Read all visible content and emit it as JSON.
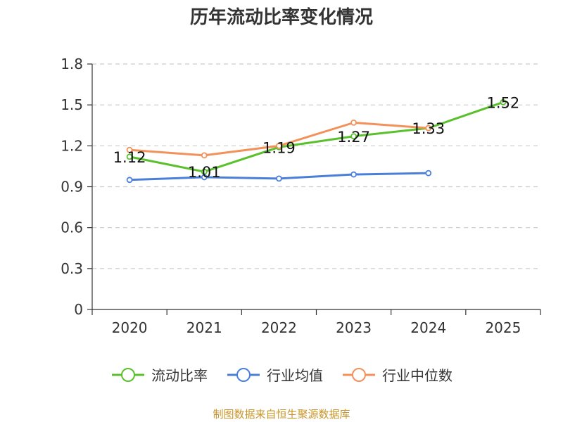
{
  "chart_data": {
    "type": "line",
    "title": "历年流动比率变化情况",
    "xlabel": "",
    "ylabel": "",
    "categories": [
      "2020",
      "2021",
      "2022",
      "2023",
      "2024",
      "2025"
    ],
    "ylim": [
      0,
      1.8
    ],
    "yticks": [
      0,
      0.3,
      0.6,
      0.9,
      1.2,
      1.5,
      1.8
    ],
    "ytick_labels": [
      "0",
      "0.3",
      "0.6",
      "0.9",
      "1.2",
      "1.5",
      "1.8"
    ],
    "grid": true,
    "legend_position": "bottom",
    "series": [
      {
        "name": "流动比率",
        "color": "#5ac12d",
        "values": [
          1.12,
          1.01,
          1.19,
          1.27,
          1.33,
          1.52
        ],
        "data_labels": [
          "1.12",
          "1.01",
          "1.19",
          "1.27",
          "1.33",
          "1.52"
        ]
      },
      {
        "name": "行业均值",
        "color": "#4a7fd9",
        "values": [
          0.95,
          0.97,
          0.96,
          0.99,
          1.0,
          null
        ],
        "data_labels": []
      },
      {
        "name": "行业中位数",
        "color": "#f2915a",
        "values": [
          1.17,
          1.13,
          1.2,
          1.37,
          1.33,
          null
        ],
        "data_labels": []
      }
    ]
  },
  "source_note": "制图数据来自恒生聚源数据库"
}
